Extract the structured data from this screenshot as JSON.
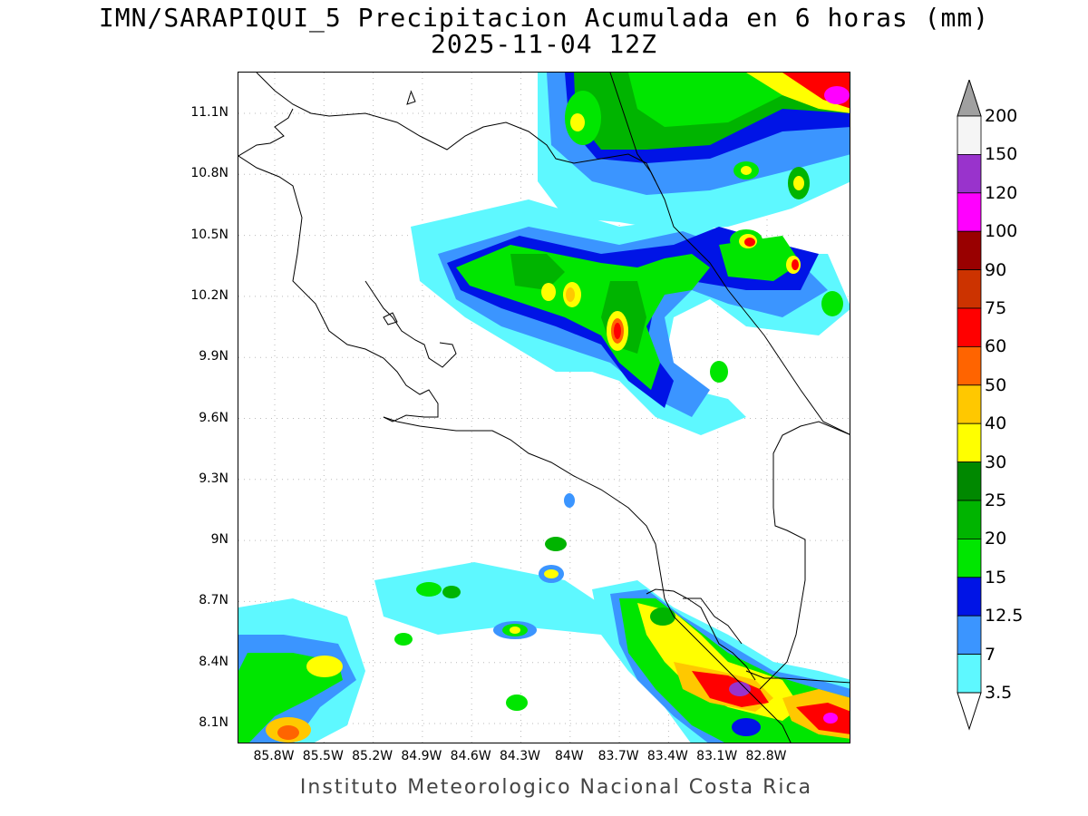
{
  "title": {
    "line1": "IMN/SARAPIQUI_5 Precipitacion Acumulada en 6 horas (mm)",
    "line2": "2025-11-04 12Z"
  },
  "footer": "Instituto Meteorologico Nacional Costa Rica",
  "map": {
    "lat_labels": [
      "11.1N",
      "10.8N",
      "10.5N",
      "10.2N",
      "9.9N",
      "9.6N",
      "9.3N",
      "9N",
      "8.7N",
      "8.4N",
      "8.1N"
    ],
    "lon_labels": [
      "85.8W",
      "85.5W",
      "85.2W",
      "84.9W",
      "84.6W",
      "84.3W",
      "84W",
      "83.7W",
      "83.4W",
      "83.1W",
      "82.8W"
    ],
    "grid": "dotted"
  },
  "legend": {
    "levels": [
      "3.5",
      "7",
      "12.5",
      "15",
      "20",
      "25",
      "30",
      "40",
      "50",
      "60",
      "75",
      "90",
      "100",
      "120",
      "150",
      "200"
    ],
    "colors": [
      "#ffffff",
      "#5ef8ff",
      "#3b95ff",
      "#0014e6",
      "#00e600",
      "#00b400",
      "#008800",
      "#ffff00",
      "#ffc800",
      "#ff6400",
      "#ff0000",
      "#cc3300",
      "#990000",
      "#ff00ff",
      "#9933cc",
      "#f5f5f5",
      "#a0a0a0"
    ]
  }
}
